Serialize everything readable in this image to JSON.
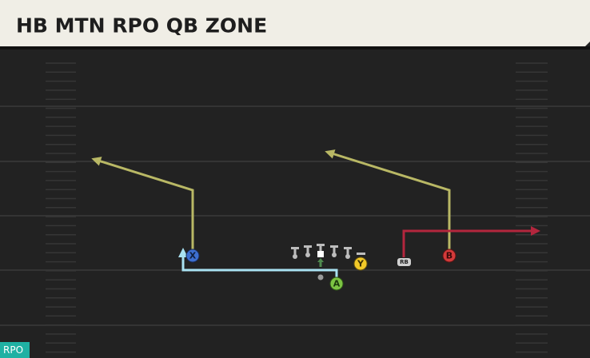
{
  "header": {
    "title": "HB MTN RPO QB ZONE"
  },
  "players": [
    {
      "label": "X"
    },
    {
      "label": "Y"
    },
    {
      "label": "A"
    },
    {
      "label": "B"
    },
    {
      "label": "RB"
    }
  ],
  "badge": "RPO"
}
